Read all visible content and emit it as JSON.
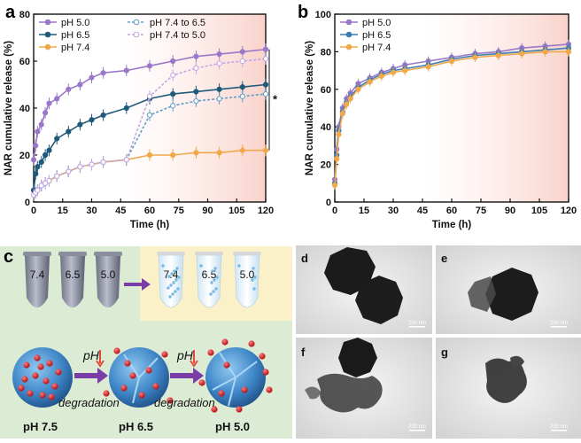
{
  "chart_data": [
    {
      "panel": "a",
      "type": "line",
      "xlabel": "Time (h)",
      "ylabel": "NAR cumulative release (%)",
      "xlim": [
        0,
        120
      ],
      "ylim": [
        0,
        80
      ],
      "xticks": [
        0,
        15,
        30,
        45,
        60,
        75,
        90,
        105,
        120
      ],
      "yticks": [
        0,
        20,
        40,
        60,
        80
      ],
      "grid": false,
      "legend": "top-left",
      "shaded_region_x": [
        45,
        120
      ],
      "significance": "*",
      "series": [
        {
          "name": "pH 5.0",
          "color": "#9a77c9",
          "dashed": false,
          "x": [
            0,
            1,
            2,
            4,
            6,
            8,
            12,
            18,
            24,
            30,
            36,
            48,
            60,
            72,
            84,
            96,
            108,
            120
          ],
          "y": [
            18,
            24,
            30,
            33,
            38,
            42,
            44,
            48,
            50,
            53,
            55,
            56,
            58,
            60,
            62,
            63,
            64,
            65
          ]
        },
        {
          "name": "pH 6.5",
          "color": "#1f5a7a",
          "dashed": false,
          "x": [
            0,
            1,
            2,
            4,
            6,
            8,
            12,
            18,
            24,
            30,
            36,
            48,
            60,
            72,
            84,
            96,
            108,
            120
          ],
          "y": [
            5,
            12,
            15,
            17,
            20,
            22,
            27,
            30,
            33,
            35,
            37,
            40,
            44,
            46,
            47,
            48,
            49,
            50
          ]
        },
        {
          "name": "pH 7.4",
          "color": "#f0a849",
          "dashed": false,
          "x": [
            0,
            1,
            2,
            4,
            6,
            8,
            12,
            18,
            24,
            30,
            36,
            48,
            60,
            72,
            84,
            96,
            108,
            120
          ],
          "y": [
            3,
            4,
            5,
            7,
            8,
            9,
            11,
            13,
            15,
            16,
            17,
            18,
            20,
            20,
            21,
            21,
            22,
            22
          ]
        },
        {
          "name": "pH 7.4 to 6.5",
          "color": "#5f9fc6",
          "dashed": true,
          "x": [
            0,
            1,
            2,
            4,
            6,
            8,
            12,
            18,
            24,
            30,
            36,
            48,
            60,
            72,
            84,
            96,
            108,
            120
          ],
          "y": [
            3,
            4,
            5,
            7,
            8,
            9,
            11,
            13,
            15,
            16,
            17,
            18,
            37,
            41,
            43,
            44,
            45,
            46
          ]
        },
        {
          "name": "pH 7.4 to 5.0",
          "color": "#c2a6e3",
          "dashed": true,
          "x": [
            0,
            1,
            2,
            4,
            6,
            8,
            12,
            18,
            24,
            30,
            36,
            48,
            60,
            72,
            84,
            96,
            108,
            120
          ],
          "y": [
            3,
            4,
            5,
            7,
            8,
            9,
            11,
            13,
            15,
            16,
            17,
            18,
            45,
            54,
            57,
            59,
            60,
            61
          ]
        }
      ]
    },
    {
      "panel": "b",
      "type": "line",
      "xlabel": "Time (h)",
      "ylabel": "NAR cumulative release (%)",
      "xlim": [
        0,
        120
      ],
      "ylim": [
        0,
        100
      ],
      "xticks": [
        0,
        15,
        30,
        45,
        60,
        75,
        90,
        105,
        120
      ],
      "yticks": [
        0,
        20,
        40,
        60,
        80,
        100
      ],
      "grid": false,
      "legend": "top-left",
      "shaded_region_x": [
        45,
        120
      ],
      "series": [
        {
          "name": "pH 5.0",
          "color": "#9a77c9",
          "dashed": false,
          "x": [
            0,
            1,
            2,
            4,
            6,
            8,
            12,
            18,
            24,
            30,
            36,
            48,
            60,
            72,
            84,
            96,
            108,
            120
          ],
          "y": [
            12,
            28,
            40,
            50,
            55,
            58,
            63,
            66,
            69,
            71,
            73,
            75,
            77,
            79,
            80,
            82,
            83,
            84
          ]
        },
        {
          "name": "pH 6.5",
          "color": "#3d7cb1",
          "dashed": false,
          "x": [
            0,
            1,
            2,
            4,
            6,
            8,
            12,
            18,
            24,
            30,
            36,
            48,
            60,
            72,
            84,
            96,
            108,
            120
          ],
          "y": [
            10,
            25,
            38,
            48,
            53,
            56,
            61,
            65,
            68,
            70,
            71,
            73,
            76,
            78,
            79,
            80,
            81,
            82
          ]
        },
        {
          "name": "pH 7.4",
          "color": "#f0a849",
          "dashed": false,
          "x": [
            0,
            1,
            2,
            4,
            6,
            8,
            12,
            18,
            24,
            30,
            36,
            48,
            60,
            72,
            84,
            96,
            108,
            120
          ],
          "y": [
            9,
            23,
            36,
            47,
            52,
            55,
            60,
            64,
            67,
            69,
            70,
            72,
            75,
            77,
            78,
            79,
            80,
            80
          ]
        }
      ]
    }
  ],
  "panel_labels": {
    "a": "a",
    "b": "b",
    "c": "c",
    "d": "d",
    "e": "e",
    "f": "f",
    "g": "g"
  },
  "panel_c": {
    "tubes_before": [
      "7.4",
      "6.5",
      "5.0"
    ],
    "tubes_after": [
      "7.4",
      "6.5",
      "5.0"
    ],
    "ph_arrow_text": "pH",
    "degradation_text": "degradation",
    "stage_labels": [
      "pH 7.5",
      "pH 6.5",
      "pH 5.0"
    ]
  },
  "micrographs": {
    "scale_bar_text": "200 nm"
  }
}
